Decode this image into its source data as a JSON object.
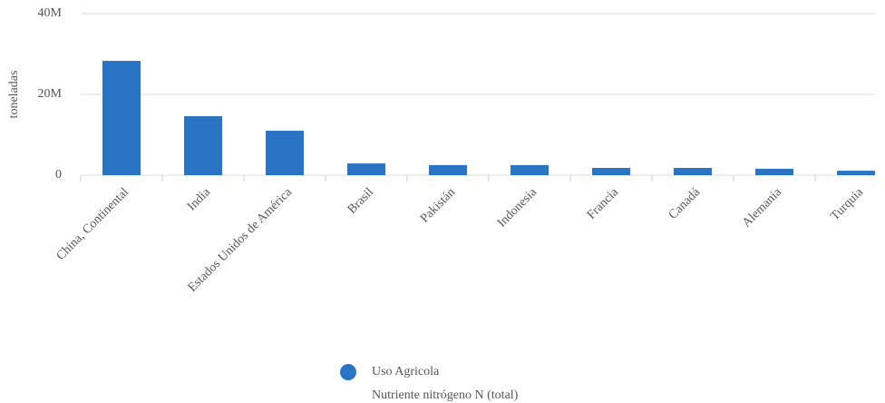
{
  "chart_data": {
    "type": "bar",
    "y_label": "toneladas",
    "categories": [
      "China, Continental",
      "India",
      "Estados Unidos de América",
      "Brasil",
      "Pakistán",
      "Indonesia",
      "Francia",
      "Canadá",
      "Alemania",
      "Turquia"
    ],
    "series": [
      {
        "name": "Uso Agricola",
        "description": "Nutriente nitrógeno N (total)",
        "color": "#2a74c4",
        "values": [
          28300000,
          14600000,
          11000000,
          2900000,
          2500000,
          2500000,
          1800000,
          1800000,
          1600000,
          1100000
        ]
      }
    ],
    "ylim": [
      0,
      40000000
    ],
    "yticks": [
      {
        "value": 0,
        "label": "0"
      },
      {
        "value": 20000000,
        "label": "20M"
      },
      {
        "value": 40000000,
        "label": "40M"
      }
    ],
    "grid": true
  }
}
